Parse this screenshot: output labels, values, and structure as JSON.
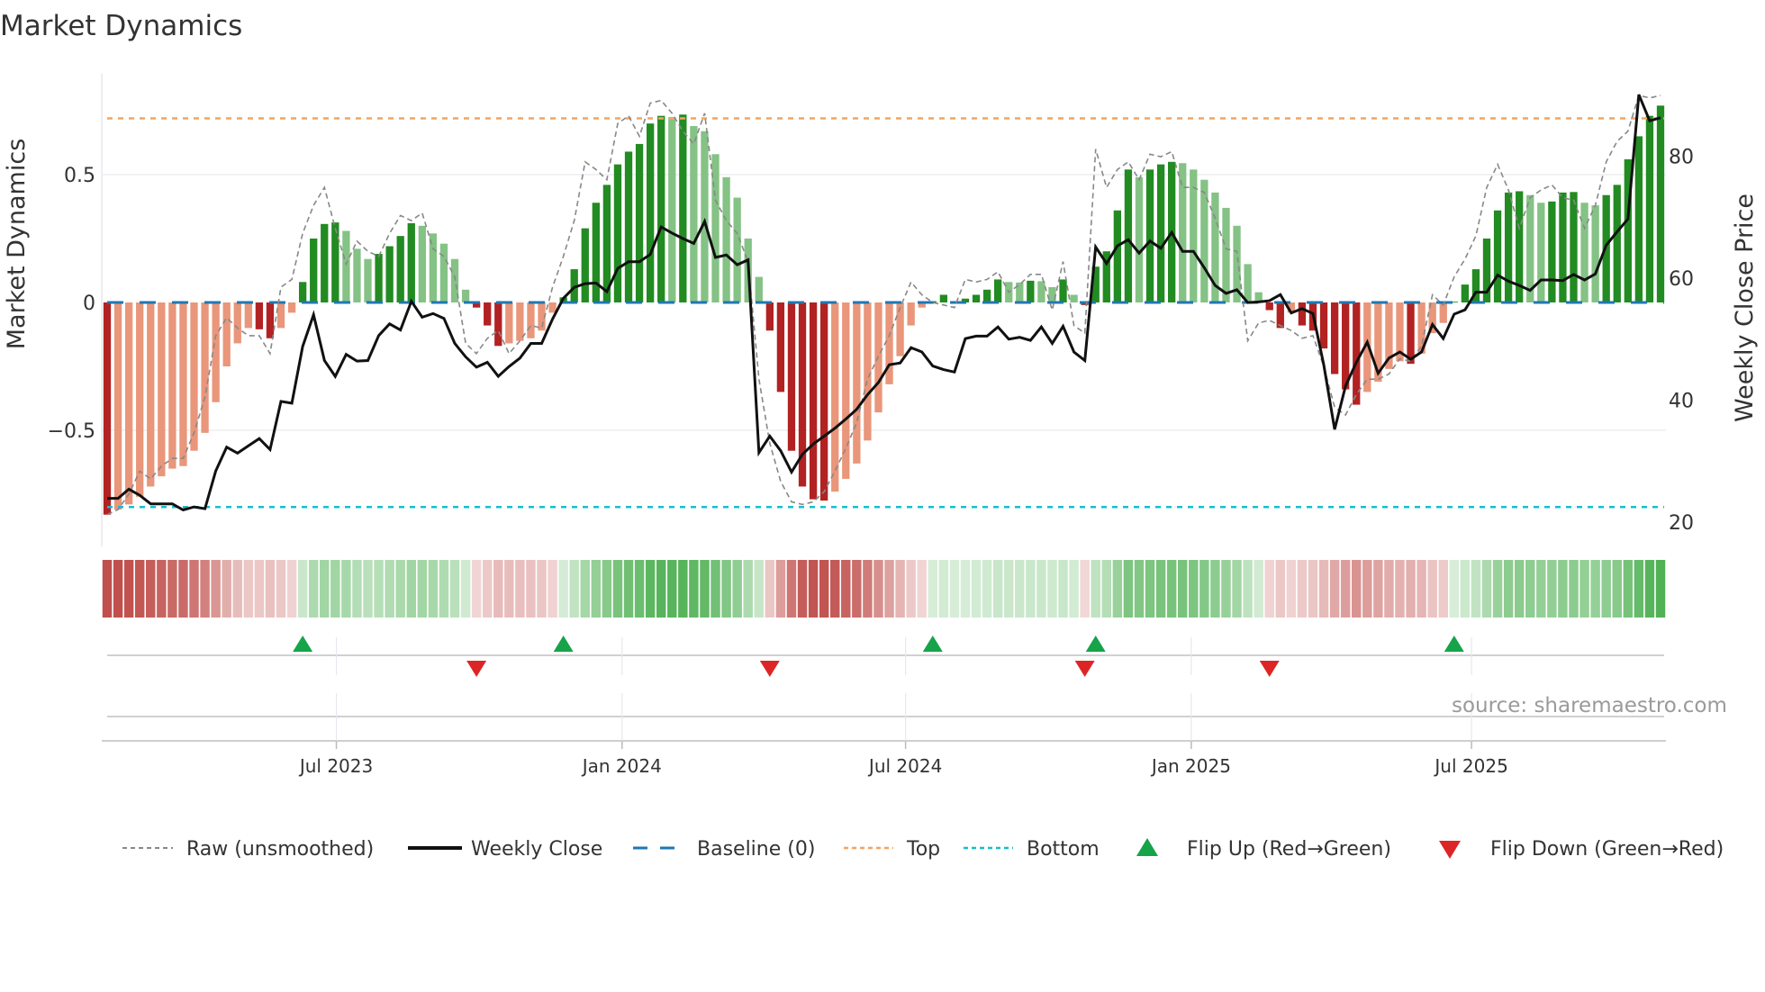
{
  "title": "Market Dynamics",
  "source": "source: sharemaestro.com",
  "legend": {
    "raw": "Raw (unsmoothed)",
    "close": "Weekly Close",
    "baseline": "Baseline (0)",
    "top": "Top",
    "bottom": "Bottom",
    "flip_up": "Flip Up (Red→Green)",
    "flip_down": "Flip Down (Green→Red)"
  },
  "colors": {
    "bar_dark_red": "#b22222",
    "bar_light_red": "#e9967a",
    "bar_dark_green": "#228b22",
    "bar_light_green": "#85c285",
    "baseline": "#1f77b4",
    "top": "#f4a460",
    "bottom": "#17becf",
    "raw": "#888888",
    "close": "#111111",
    "flip_up": "#16a34a",
    "flip_down": "#dc2626",
    "heat_red": "#c0504d",
    "heat_green": "#4caf50"
  },
  "chart_data": {
    "type": "bar",
    "title": "Market Dynamics",
    "ylabel": "Market Dynamics",
    "y2label": "Weekly Close Price",
    "ylim": [
      -0.954,
      0.894
    ],
    "y2lim": [
      16.0,
      93.5
    ],
    "grid": true,
    "legend_position": "bottom",
    "yticks": [
      {
        "value": 0.5,
        "label": "0.5"
      },
      {
        "value": 0,
        "label": "0"
      },
      {
        "value": -0.5,
        "label": "−0.5"
      }
    ],
    "y2ticks": [
      {
        "value": 80,
        "label": "80"
      },
      {
        "value": 60,
        "label": "60"
      },
      {
        "value": 40,
        "label": "40"
      },
      {
        "value": 20,
        "label": "20"
      }
    ],
    "xticks": [
      {
        "week": 21.1,
        "label": "Jul 2023"
      },
      {
        "week": 47.4,
        "label": "Jan 2024"
      },
      {
        "week": 73.5,
        "label": "Jul 2024"
      },
      {
        "week": 99.8,
        "label": "Jan 2025"
      },
      {
        "week": 125.6,
        "label": "Jul 2025"
      }
    ],
    "baseline": 0,
    "top_level": 0.72,
    "bottom_level": -0.8,
    "momentum": [
      -0.83,
      -0.81,
      -0.79,
      -0.76,
      -0.72,
      -0.68,
      -0.65,
      -0.64,
      -0.58,
      -0.51,
      -0.39,
      -0.25,
      -0.16,
      -0.1,
      -0.105,
      -0.14,
      -0.1,
      -0.04,
      0.08,
      0.25,
      0.307,
      0.313,
      0.28,
      0.21,
      0.17,
      0.19,
      0.22,
      0.26,
      0.31,
      0.3,
      0.27,
      0.23,
      0.17,
      0.05,
      -0.02,
      -0.09,
      -0.17,
      -0.16,
      -0.15,
      -0.14,
      -0.11,
      -0.04,
      0.02,
      0.13,
      0.29,
      0.39,
      0.46,
      0.54,
      0.59,
      0.62,
      0.7,
      0.73,
      0.725,
      0.735,
      0.69,
      0.67,
      0.58,
      0.49,
      0.41,
      0.25,
      0.1,
      -0.11,
      -0.35,
      -0.58,
      -0.72,
      -0.77,
      -0.775,
      -0.74,
      -0.69,
      -0.63,
      -0.54,
      -0.43,
      -0.32,
      -0.21,
      -0.09,
      -0.02,
      0.005,
      0.03,
      0.005,
      0.015,
      0.03,
      0.05,
      0.09,
      0.08,
      0.078,
      0.085,
      0.083,
      0.06,
      0.09,
      0.03,
      -0.01,
      0.14,
      0.2,
      0.36,
      0.52,
      0.49,
      0.52,
      0.54,
      0.55,
      0.545,
      0.52,
      0.48,
      0.43,
      0.37,
      0.3,
      0.15,
      0.04,
      -0.03,
      -0.1,
      -0.04,
      -0.09,
      -0.11,
      -0.18,
      -0.28,
      -0.34,
      -0.4,
      -0.35,
      -0.31,
      -0.26,
      -0.23,
      -0.24,
      -0.2,
      -0.12,
      -0.08,
      0.003,
      0.07,
      0.13,
      0.25,
      0.36,
      0.43,
      0.435,
      0.42,
      0.39,
      0.395,
      0.43,
      0.432,
      0.39,
      0.38,
      0.42,
      0.46,
      0.56,
      0.65,
      0.73,
      0.77
    ],
    "raw": [
      -0.83,
      -0.81,
      -0.75,
      -0.66,
      -0.69,
      -0.64,
      -0.61,
      -0.61,
      -0.51,
      -0.37,
      -0.13,
      -0.06,
      -0.1,
      -0.13,
      -0.13,
      -0.2,
      0.06,
      0.09,
      0.27,
      0.38,
      0.45,
      0.29,
      0.15,
      0.24,
      0.2,
      0.18,
      0.27,
      0.34,
      0.32,
      0.35,
      0.21,
      0.18,
      0.1,
      -0.16,
      -0.2,
      -0.14,
      -0.11,
      -0.2,
      -0.15,
      -0.09,
      -0.1,
      0.06,
      0.18,
      0.32,
      0.55,
      0.52,
      0.48,
      0.7,
      0.73,
      0.65,
      0.78,
      0.79,
      0.74,
      0.67,
      0.62,
      0.74,
      0.4,
      0.32,
      0.27,
      0.16,
      -0.3,
      -0.55,
      -0.7,
      -0.78,
      -0.79,
      -0.78,
      -0.74,
      -0.66,
      -0.57,
      -0.47,
      -0.3,
      -0.21,
      -0.13,
      -0.02,
      0.08,
      0.03,
      0.0,
      -0.01,
      -0.02,
      0.09,
      0.08,
      0.09,
      0.12,
      0.04,
      0.07,
      0.11,
      0.11,
      -0.03,
      0.16,
      -0.09,
      -0.12,
      0.6,
      0.45,
      0.52,
      0.55,
      0.48,
      0.58,
      0.57,
      0.59,
      0.45,
      0.45,
      0.43,
      0.33,
      0.21,
      0.2,
      -0.15,
      -0.08,
      -0.07,
      -0.09,
      -0.11,
      -0.14,
      -0.13,
      -0.25,
      -0.41,
      -0.44,
      -0.36,
      -0.3,
      -0.3,
      -0.28,
      -0.22,
      -0.23,
      -0.17,
      0.03,
      -0.01,
      0.1,
      0.17,
      0.26,
      0.45,
      0.54,
      0.44,
      0.29,
      0.41,
      0.44,
      0.46,
      0.41,
      0.4,
      0.29,
      0.38,
      0.55,
      0.63,
      0.67,
      0.81,
      0.8,
      0.81
    ],
    "close": [
      23.9,
      23.9,
      25.4,
      24.4,
      23.0,
      23.0,
      23.0,
      22.0,
      22.5,
      22.2,
      28.4,
      32.3,
      31.3,
      32.5,
      33.7,
      31.9,
      39.8,
      39.5,
      48.8,
      54.0,
      46.5,
      43.9,
      47.5,
      46.4,
      46.5,
      50.6,
      52.5,
      51.5,
      56.2,
      53.6,
      54.2,
      53.4,
      49.3,
      47.1,
      45.4,
      46.2,
      43.9,
      45.5,
      46.9,
      49.3,
      49.3,
      53.3,
      56.7,
      58.5,
      59.1,
      59.2,
      57.8,
      61.6,
      62.7,
      62.7,
      63.9,
      68.4,
      67.4,
      66.5,
      65.7,
      69.3,
      63.4,
      63.8,
      62.2,
      63.0,
      31.4,
      34.1,
      31.7,
      28.2,
      31.1,
      32.8,
      34.1,
      35.4,
      36.9,
      38.5,
      40.9,
      42.9,
      45.8,
      46.1,
      48.6,
      47.9,
      45.6,
      45.0,
      44.6,
      50.1,
      50.5,
      50.5,
      52.0,
      50.0,
      50.3,
      49.8,
      52.0,
      49.3,
      52.1,
      47.9,
      46.5,
      65.1,
      62.4,
      65.3,
      66.3,
      64.1,
      66.1,
      64.9,
      67.5,
      64.4,
      64.4,
      61.7,
      58.8,
      57.5,
      58.1,
      56.0,
      56.1,
      56.3,
      57.3,
      54.3,
      55.0,
      54.2,
      45.8,
      35.2,
      42.3,
      46.2,
      49.5,
      44.4,
      46.9,
      47.9,
      46.7,
      47.9,
      52.4,
      50.1,
      54.1,
      54.8,
      57.7,
      57.7,
      60.5,
      59.5,
      58.8,
      58.0,
      59.7,
      59.7,
      59.6,
      60.6,
      59.7,
      60.7,
      65.4,
      67.6,
      69.7,
      90.1,
      85.8,
      86.3
    ],
    "flip_up": [
      18,
      42,
      76,
      91,
      124
    ],
    "flip_down": [
      34,
      61,
      90,
      107
    ]
  }
}
